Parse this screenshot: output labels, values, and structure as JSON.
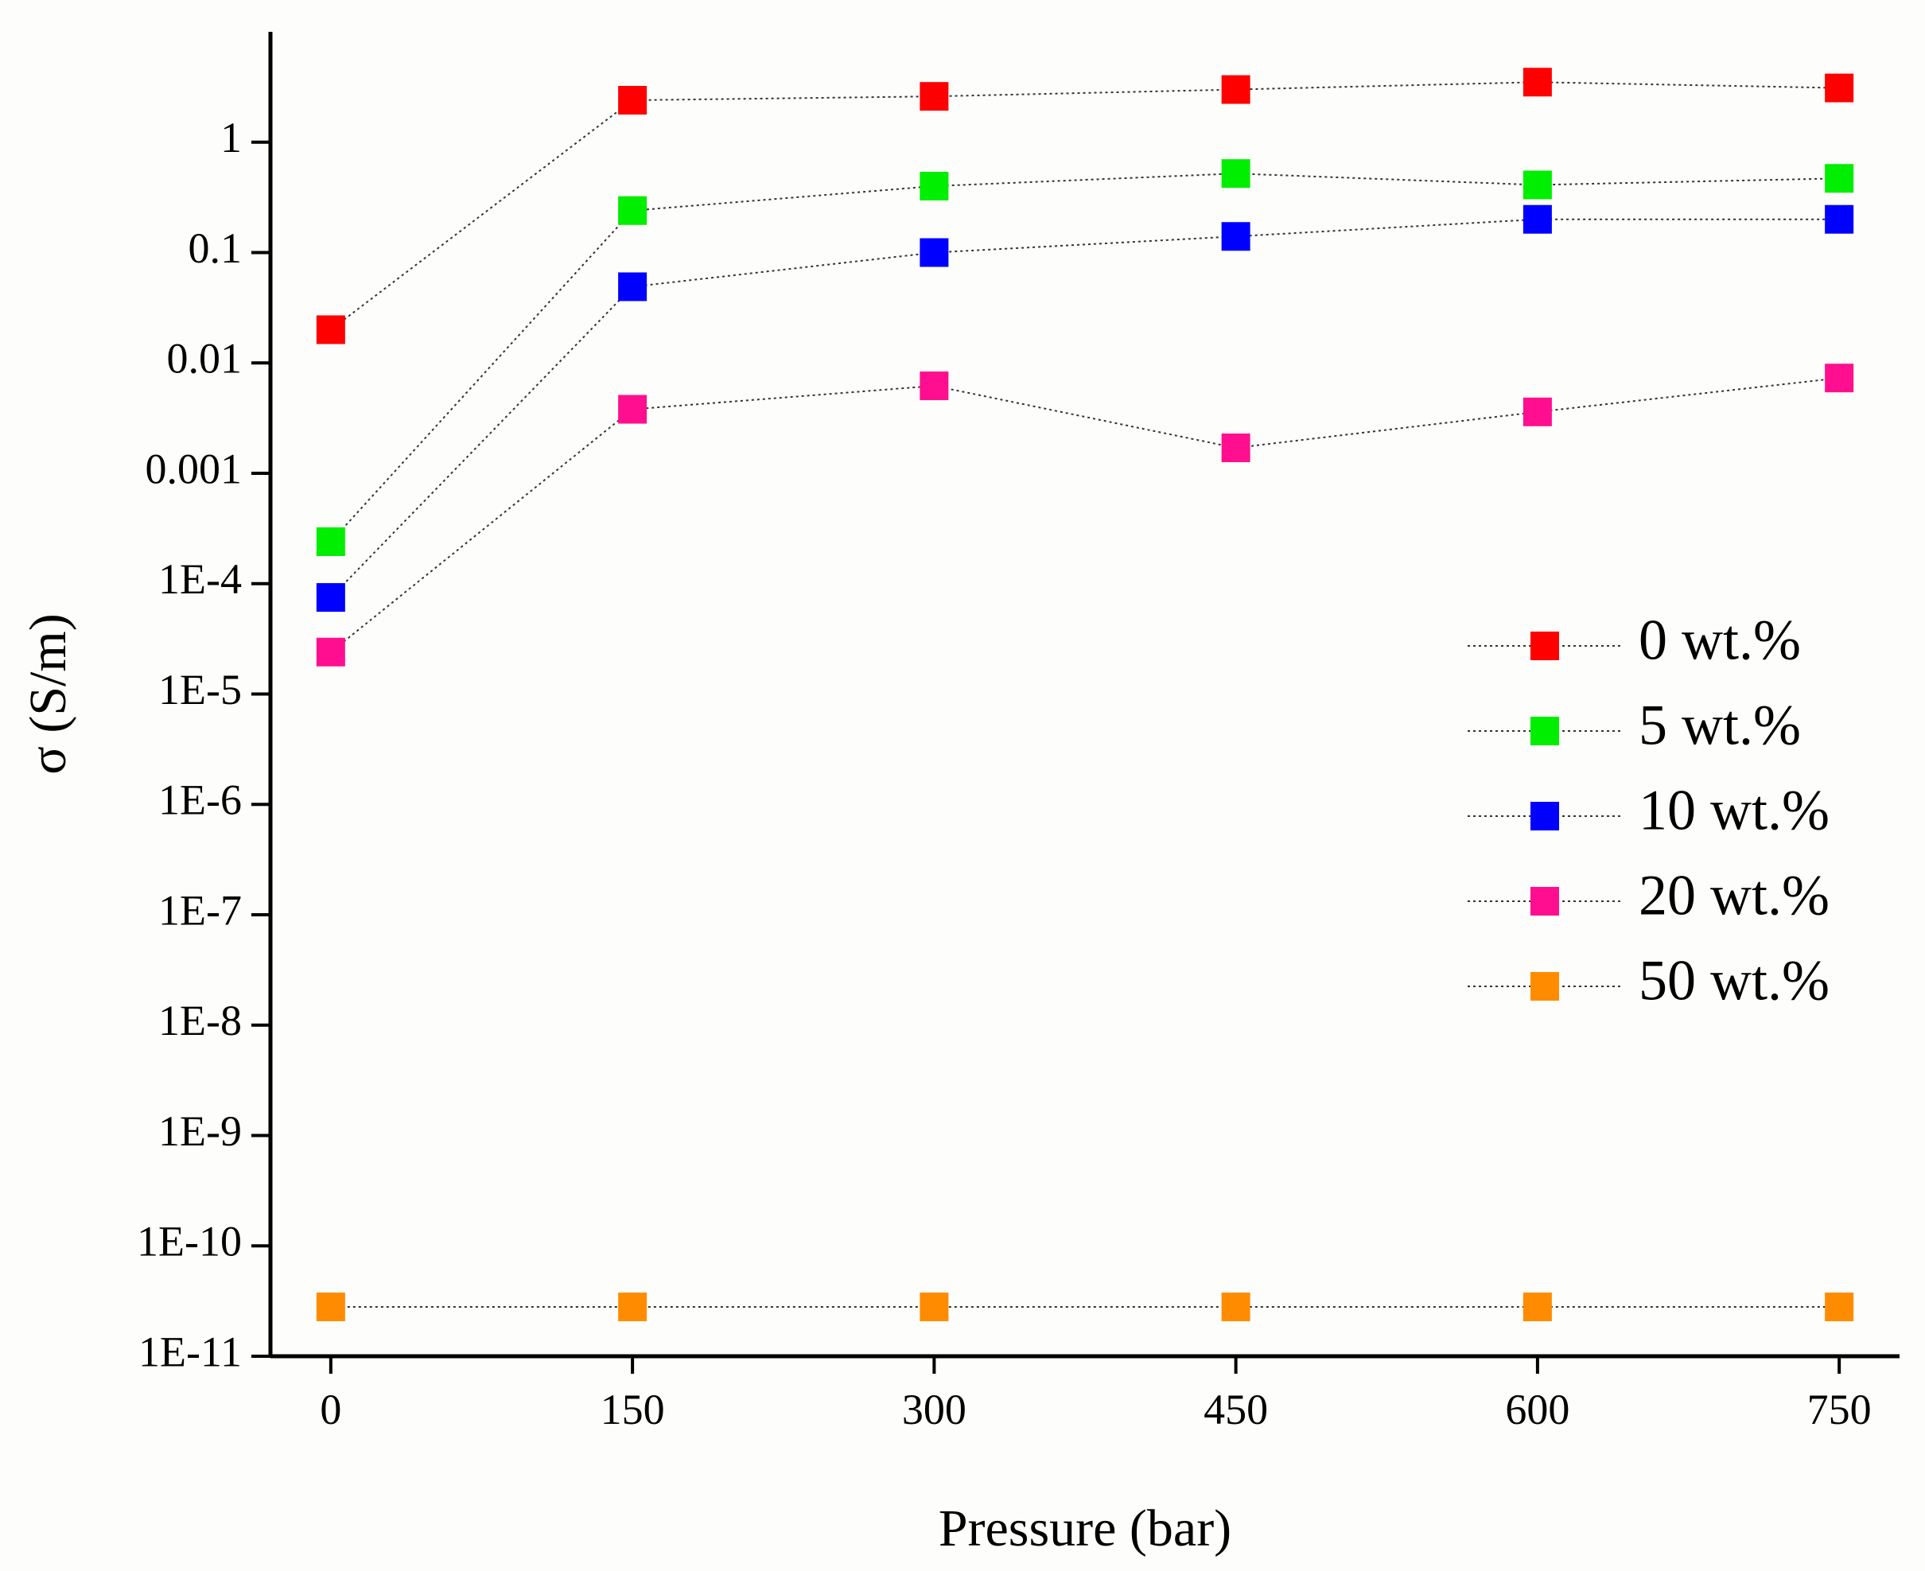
{
  "chart_data": {
    "type": "scatter",
    "title": "",
    "xlabel": "Pressure (bar)",
    "ylabel": "σ (S/m)",
    "yscale": "log",
    "xlim": [
      -30,
      780
    ],
    "ylim": [
      1e-11,
      10
    ],
    "x": [
      0,
      150,
      300,
      450,
      600,
      750
    ],
    "x_ticks": [
      "0",
      "150",
      "300",
      "450",
      "600",
      "750"
    ],
    "y_ticks": [
      {
        "value": 1,
        "label": "1"
      },
      {
        "value": 0.1,
        "label": "0.1"
      },
      {
        "value": 0.01,
        "label": "0.01"
      },
      {
        "value": 0.001,
        "label": "0.001"
      },
      {
        "value": 0.0001,
        "label": "1E-4"
      },
      {
        "value": 1e-05,
        "label": "1E-5"
      },
      {
        "value": 1e-06,
        "label": "1E-6"
      },
      {
        "value": 1e-07,
        "label": "1E-7"
      },
      {
        "value": 1e-08,
        "label": "1E-8"
      },
      {
        "value": 1e-09,
        "label": "1E-9"
      },
      {
        "value": 1e-10,
        "label": "1E-10"
      },
      {
        "value": 1e-11,
        "label": "1E-11"
      }
    ],
    "grid": false,
    "legend_position": "right",
    "series": [
      {
        "name": "0 wt.%",
        "color": "#ff0000",
        "values": [
          0.02,
          2.4,
          2.6,
          3.0,
          3.5,
          3.1
        ]
      },
      {
        "name": "5 wt.%",
        "color": "#00ee00",
        "values": [
          0.00024,
          0.24,
          0.4,
          0.52,
          0.41,
          0.47
        ]
      },
      {
        "name": "10 wt.%",
        "color": "#0000ff",
        "values": [
          7.5e-05,
          0.049,
          0.1,
          0.14,
          0.2,
          0.2
        ]
      },
      {
        "name": "20 wt.%",
        "color": "#ff0f8f",
        "values": [
          2.4e-05,
          0.0038,
          0.0062,
          0.0017,
          0.0036,
          0.0073
        ]
      },
      {
        "name": "50 wt.%",
        "color": "#ff8c00",
        "values": [
          2.8e-11,
          2.8e-11,
          2.8e-11,
          2.8e-11,
          2.8e-11,
          2.8e-11
        ]
      }
    ]
  }
}
